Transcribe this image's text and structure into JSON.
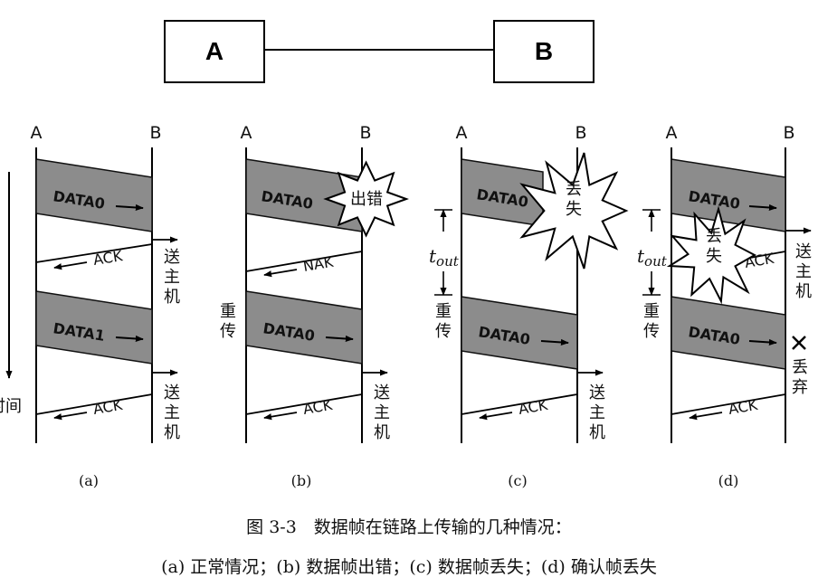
{
  "top_link": {
    "left_node": "A",
    "right_node": "B"
  },
  "station_a": "A",
  "station_b": "B",
  "time_axis_label": "时间",
  "panels": [
    {
      "id": "a",
      "label": "(a)",
      "frames": [
        {
          "text": "DATA0",
          "mark": "none"
        },
        {
          "text": "DATA1",
          "mark": "none"
        }
      ],
      "acks": [
        {
          "text": "ACK",
          "receiver_note": "送主机"
        },
        {
          "text": "ACK",
          "receiver_note": "送主机"
        }
      ]
    },
    {
      "id": "b",
      "label": "(b)",
      "frames": [
        {
          "text": "DATA0",
          "mark": "出错"
        },
        {
          "text": "DATA0",
          "mark": "none"
        }
      ],
      "acks": [
        {
          "text": "NAK",
          "receiver_note": ""
        },
        {
          "text": "ACK",
          "receiver_note": "送主机"
        }
      ],
      "sender_note": "重传"
    },
    {
      "id": "c",
      "label": "(c)",
      "frames": [
        {
          "text": "DATA0",
          "mark": "丢失"
        },
        {
          "text": "DATA0",
          "mark": "none"
        }
      ],
      "acks": [
        {
          "text": "ACK",
          "receiver_note": "送主机"
        }
      ],
      "sender_note": "重传",
      "timeout": {
        "main": "t",
        "sub": "out"
      }
    },
    {
      "id": "d",
      "label": "(d)",
      "frames": [
        {
          "text": "DATA0",
          "mark": "none"
        },
        {
          "text": "DATA0",
          "mark": "丢弃"
        }
      ],
      "acks": [
        {
          "text": "ACK",
          "receiver_note": "送主机",
          "lost_mark": "丢失"
        },
        {
          "text": "ACK",
          "receiver_note": ""
        }
      ],
      "sender_note": "重传",
      "timeout": {
        "main": "t",
        "sub": "out"
      }
    }
  ],
  "caption": {
    "line1": "图 3-3　数据帧在链路上传输的几种情况：",
    "line2": "(a) 正常情况；(b) 数据帧出错；(c) 数据帧丢失；(d) 确认帧丢失"
  }
}
